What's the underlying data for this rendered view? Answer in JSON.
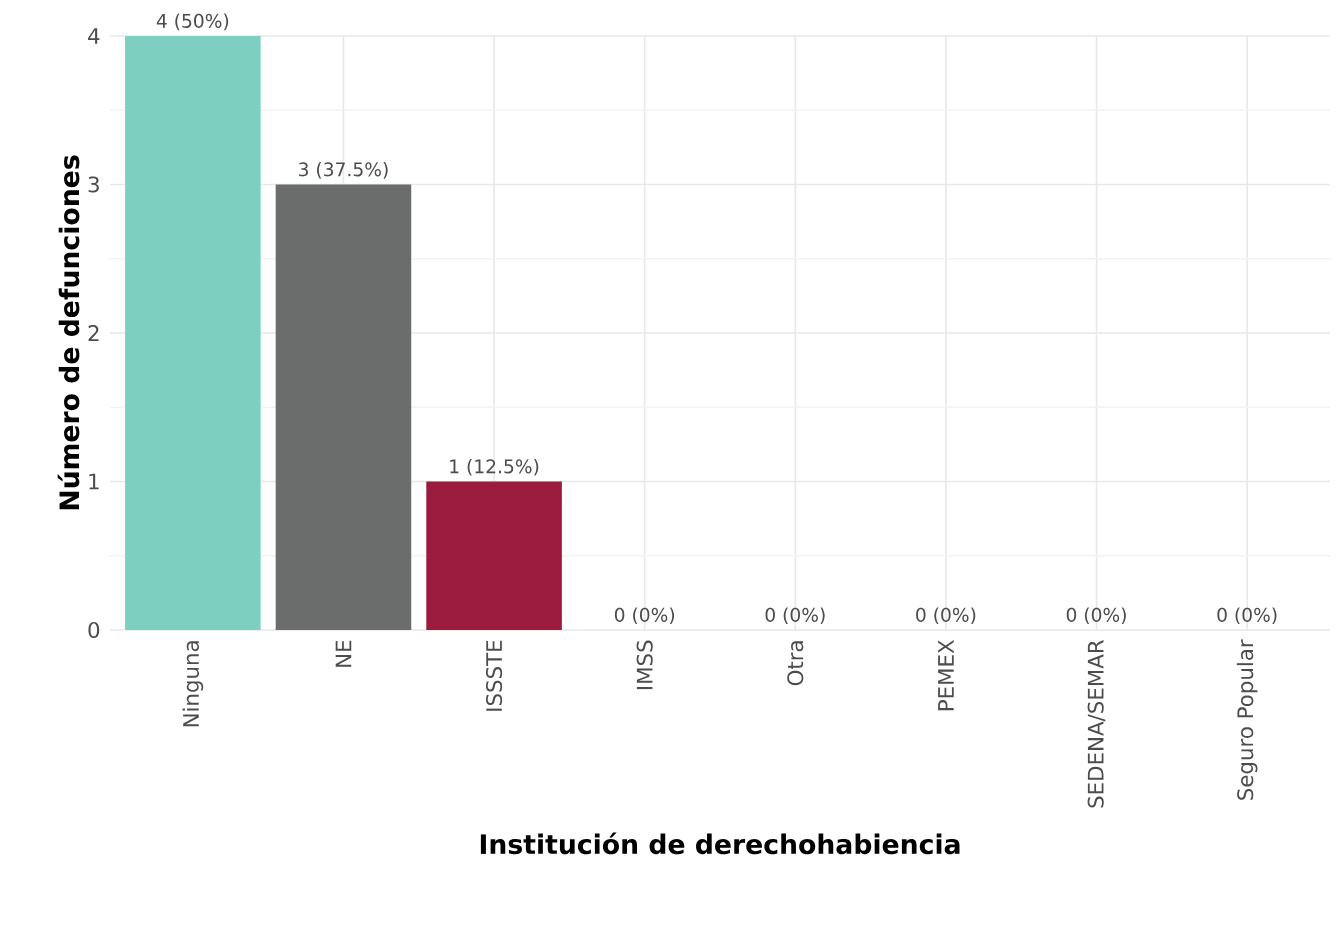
{
  "chart_data": {
    "type": "bar",
    "xlabel": "Institución de derechohabiencia",
    "ylabel": "Número de defunciones",
    "categories": [
      "Ninguna",
      "NE",
      "ISSSTE",
      "IMSS",
      "Otra",
      "PEMEX",
      "SEDENA/SEMAR",
      "Seguro Popular"
    ],
    "values": [
      4,
      3,
      1,
      0,
      0,
      0,
      0,
      0
    ],
    "colors": [
      "#7dcfc0",
      "#6b6d6d",
      "#9b1b3f",
      "#6b6d6d",
      "#6b6d6d",
      "#6b6d6d",
      "#6b6d6d",
      "#6b6d6d"
    ],
    "value_labels": [
      "4 (50%)",
      "3 (37.5%)",
      "1 (12.5%)",
      "0 (0%)",
      "0 (0%)",
      "0 (0%)",
      "0 (0%)",
      "0 (0%)"
    ],
    "ylim": [
      0,
      4
    ],
    "yticks": [
      0,
      1,
      2,
      3,
      4
    ],
    "grid": true
  }
}
